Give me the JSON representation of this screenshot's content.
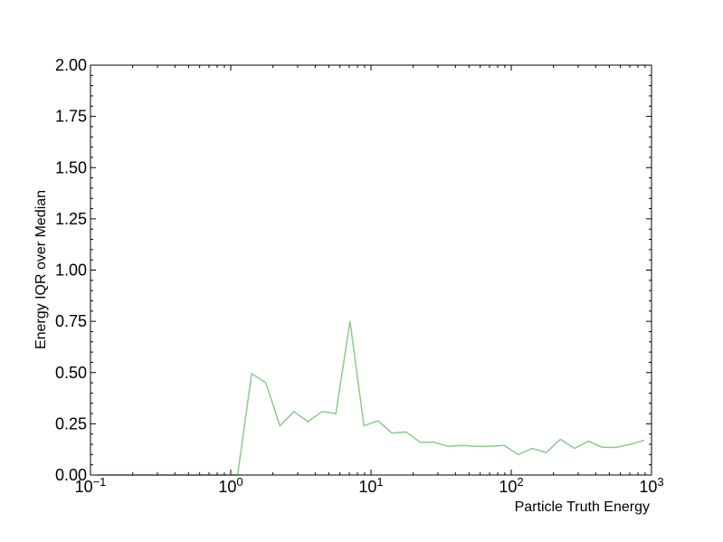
{
  "chart_data": {
    "type": "line",
    "title": "",
    "xlabel": "Particle Truth Energy",
    "ylabel": "Energy IQR over Median",
    "xscale": "log",
    "xlim": [
      0.1,
      1000
    ],
    "ylim": [
      0,
      2
    ],
    "grid": false,
    "legend": "none",
    "x_ticks": [
      {
        "base": "10",
        "exp": "−1",
        "value": 0.1
      },
      {
        "base": "10",
        "exp": "0",
        "value": 1
      },
      {
        "base": "10",
        "exp": "1",
        "value": 10
      },
      {
        "base": "10",
        "exp": "2",
        "value": 100
      },
      {
        "base": "10",
        "exp": "3",
        "value": 1000
      }
    ],
    "y_ticks": [
      "0.00",
      "0.25",
      "0.50",
      "0.75",
      "1.00",
      "1.25",
      "1.50",
      "1.75",
      "2.00"
    ],
    "series": [
      {
        "color": "#8fc98f",
        "x": [
          0.112,
          0.141,
          0.178,
          0.224,
          0.282,
          0.355,
          0.447,
          0.562,
          0.708,
          0.891,
          1.12,
          1.41,
          1.78,
          2.24,
          2.82,
          3.55,
          4.47,
          5.62,
          7.08,
          8.91,
          11.2,
          14.1,
          17.8,
          22.4,
          28.2,
          35.5,
          44.7,
          56.2,
          70.8,
          89.1,
          112,
          141,
          178,
          224,
          282,
          355,
          447,
          562,
          708,
          891
        ],
        "values": [
          0,
          0,
          0,
          0,
          0,
          0,
          0,
          0,
          0,
          0,
          0,
          0.495,
          0.45,
          0.24,
          0.31,
          0.26,
          0.31,
          0.3,
          0.75,
          0.24,
          0.265,
          0.205,
          0.21,
          0.16,
          0.16,
          0.14,
          0.145,
          0.14,
          0.14,
          0.145,
          0.1,
          0.13,
          0.11,
          0.175,
          0.13,
          0.165,
          0.135,
          0.135,
          0.15,
          0.17
        ]
      }
    ]
  }
}
